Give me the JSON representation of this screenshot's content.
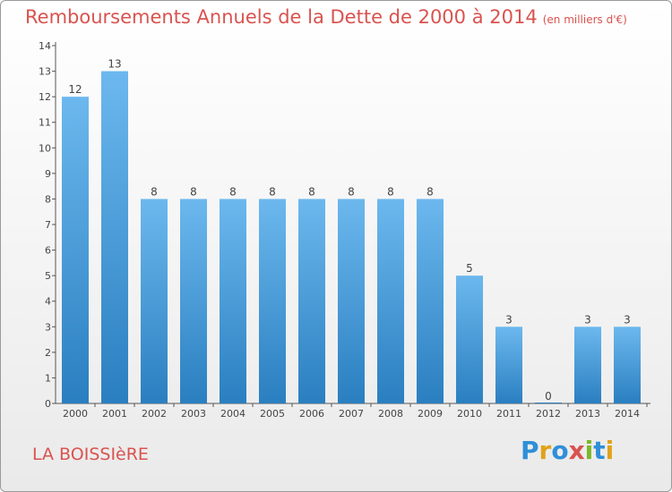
{
  "header": {
    "title": "Remboursements Annuels de la Dette de 2000 à 2014",
    "unit": "(en milliers d'€)"
  },
  "footer": {
    "town": "LA BOISSIèRE",
    "logo": "Proxiti"
  },
  "colors": {
    "title": "#d9534f",
    "bar_light": "#6cb8ee",
    "bar_dark": "#2a7fc0",
    "axis": "#555555"
  },
  "chart_data": {
    "type": "bar",
    "title": "Remboursements Annuels de la Dette de 2000 à 2014",
    "ylabel": "en milliers d'€",
    "xlabel": "",
    "categories": [
      "2000",
      "2001",
      "2002",
      "2003",
      "2004",
      "2005",
      "2006",
      "2007",
      "2008",
      "2009",
      "2010",
      "2011",
      "2012",
      "2013",
      "2014"
    ],
    "values": [
      12,
      13,
      8,
      8,
      8,
      8,
      8,
      8,
      8,
      8,
      5,
      3,
      0,
      3,
      3
    ],
    "ylim": [
      0,
      14
    ],
    "yticks": [
      0,
      1,
      2,
      3,
      4,
      5,
      6,
      7,
      8,
      9,
      10,
      11,
      12,
      13,
      14
    ]
  }
}
